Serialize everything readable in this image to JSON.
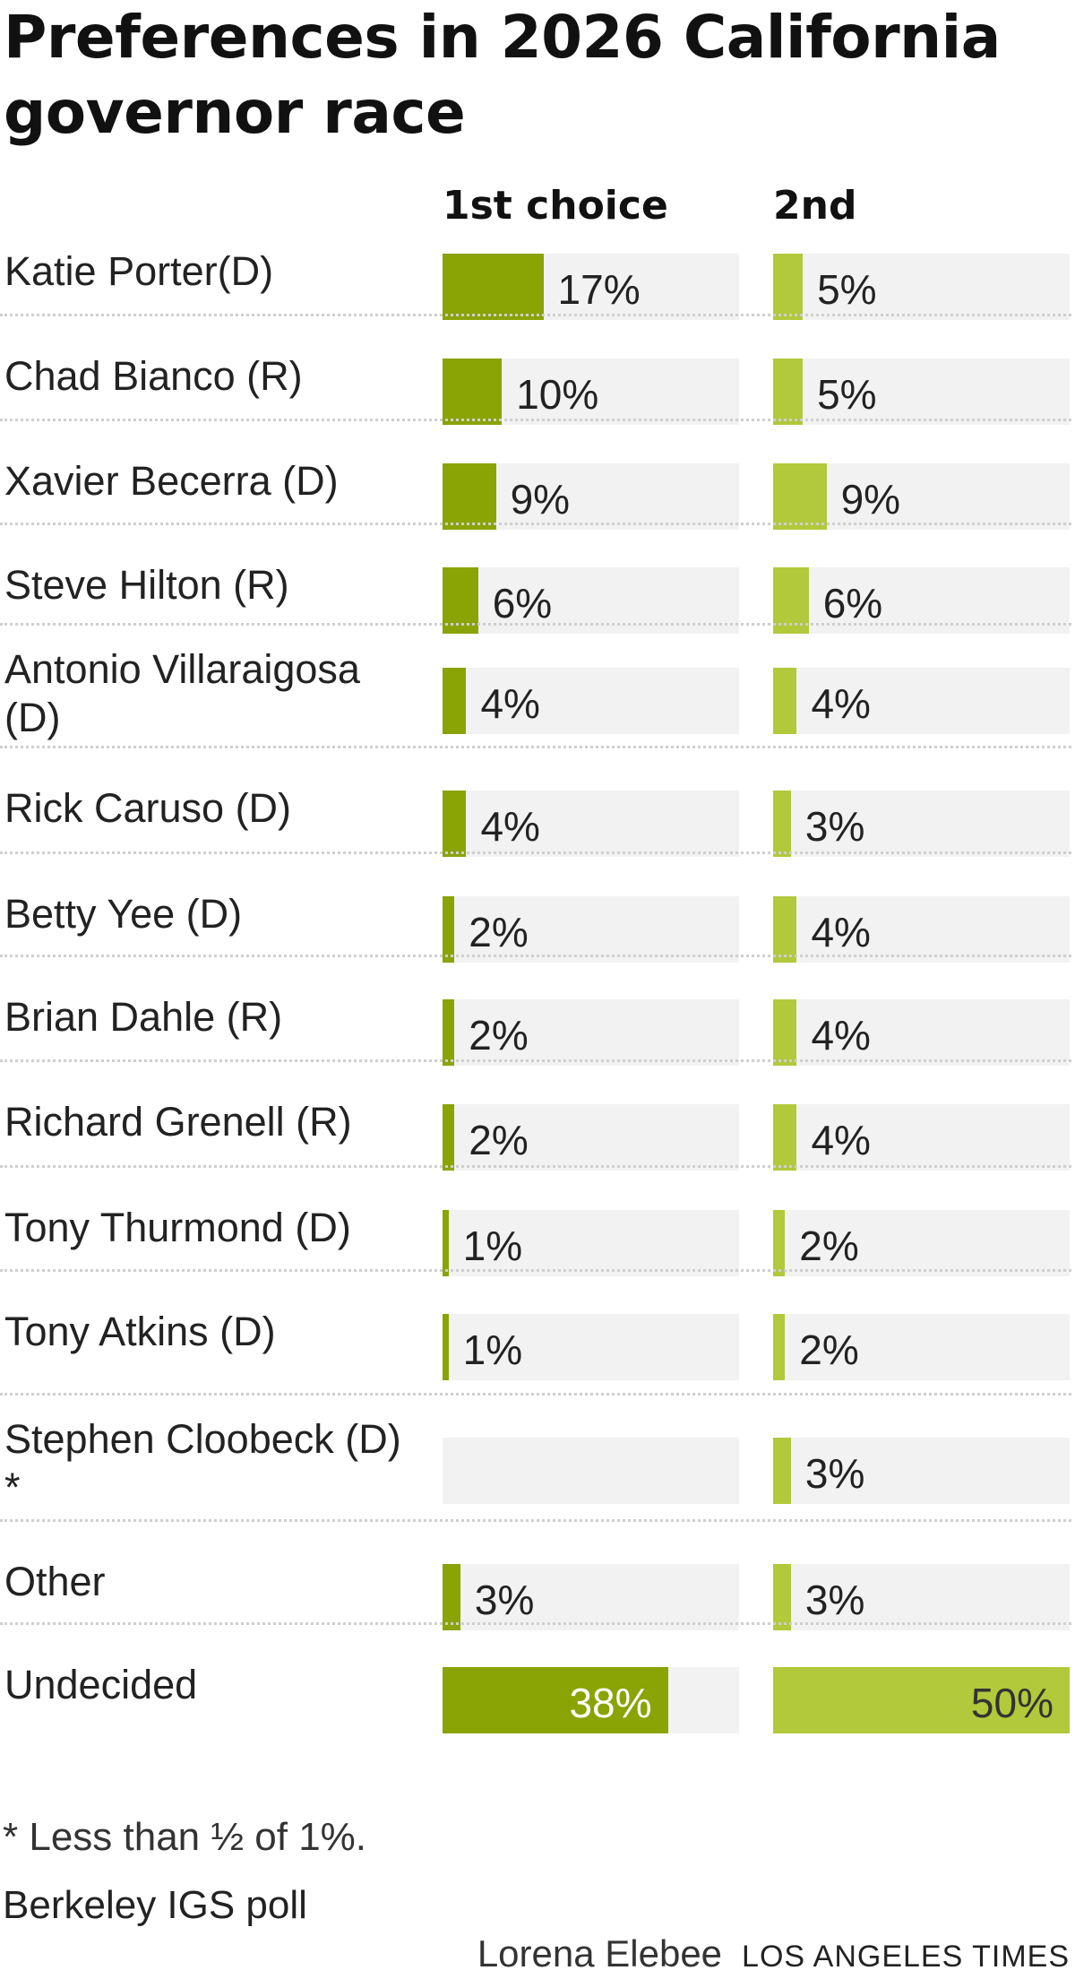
{
  "title": "Preferences in 2026 California governor race",
  "colors": {
    "first_choice": "#8aa305",
    "second_choice": "#b1c93b",
    "track": "#f2f2f2"
  },
  "chart_data": {
    "type": "bar",
    "columns": [
      "1st choice",
      "2nd"
    ],
    "categories": [
      "Katie Porter(D)",
      "Chad Bianco (R)",
      "Xavier Becerra (D)",
      "Steve Hilton (R)",
      "Antonio Villaraigosa (D)",
      "Rick Caruso (D)",
      "Betty Yee (D)",
      "Brian Dahle (R)",
      "Richard Grenell (R)",
      "Tony Thurmond (D)",
      "Tony Atkins (D)",
      "Stephen Cloobeck (D) *",
      "Other",
      "Undecided"
    ],
    "series": [
      {
        "name": "1st choice",
        "values": [
          17,
          10,
          9,
          6,
          4,
          4,
          2,
          2,
          2,
          1,
          1,
          0,
          3,
          38
        ],
        "labels": [
          "17%",
          "10%",
          "9%",
          "6%",
          "4%",
          "4%",
          "2%",
          "2%",
          "2%",
          "1%",
          "1%",
          "",
          "3%",
          "38%"
        ]
      },
      {
        "name": "2nd",
        "values": [
          5,
          5,
          9,
          6,
          4,
          3,
          4,
          4,
          4,
          2,
          2,
          3,
          3,
          50
        ],
        "labels": [
          "5%",
          "5%",
          "9%",
          "6%",
          "4%",
          "3%",
          "4%",
          "4%",
          "4%",
          "2%",
          "2%",
          "3%",
          "3%",
          "50%"
        ]
      }
    ],
    "xlim": [
      0,
      50
    ]
  },
  "footnote": "* Less than ½ of 1%.",
  "source": "Berkeley IGS poll",
  "credit": {
    "author": "Lorena Elebee",
    "publisher": "LOS ANGELES TIMES"
  }
}
